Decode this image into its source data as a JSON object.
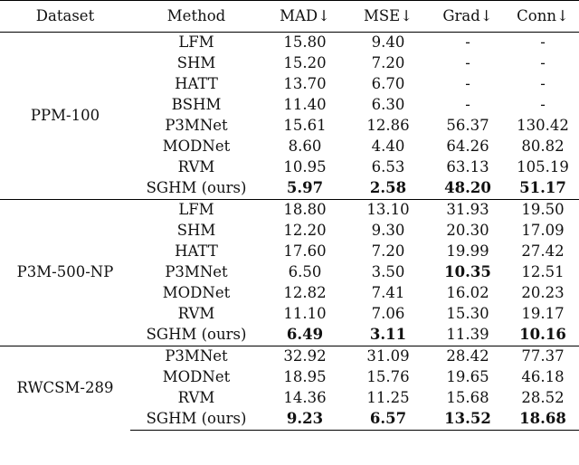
{
  "headers": [
    "Dataset",
    "Method",
    "MAD↓",
    "MSE↓",
    "Grad↓",
    "Conn↓"
  ],
  "groups": [
    {
      "dataset": "PPM-100",
      "rows": [
        {
          "method": "LFM",
          "mad": "15.80",
          "mse": "9.40",
          "grad": "-",
          "conn": "-",
          "bold": []
        },
        {
          "method": "SHM",
          "mad": "15.20",
          "mse": "7.20",
          "grad": "-",
          "conn": "-",
          "bold": []
        },
        {
          "method": "HATT",
          "mad": "13.70",
          "mse": "6.70",
          "grad": "-",
          "conn": "-",
          "bold": []
        },
        {
          "method": "BSHM",
          "mad": "11.40",
          "mse": "6.30",
          "grad": "-",
          "conn": "-",
          "bold": []
        },
        {
          "method": "P3MNet",
          "mad": "15.61",
          "mse": "12.86",
          "grad": "56.37",
          "conn": "130.42",
          "bold": []
        },
        {
          "method": "MODNet",
          "mad": "8.60",
          "mse": "4.40",
          "grad": "64.26",
          "conn": "80.82",
          "bold": []
        },
        {
          "method": "RVM",
          "mad": "10.95",
          "mse": "6.53",
          "grad": "63.13",
          "conn": "105.19",
          "bold": []
        },
        {
          "method": "SGHM (ours)",
          "mad": "5.97",
          "mse": "2.58",
          "grad": "48.20",
          "conn": "51.17",
          "bold": [
            "mad",
            "mse",
            "grad",
            "conn"
          ]
        }
      ]
    },
    {
      "dataset": "P3M-500-NP",
      "rows": [
        {
          "method": "LFM",
          "mad": "18.80",
          "mse": "13.10",
          "grad": "31.93",
          "conn": "19.50",
          "bold": []
        },
        {
          "method": "SHM",
          "mad": "12.20",
          "mse": "9.30",
          "grad": "20.30",
          "conn": "17.09",
          "bold": []
        },
        {
          "method": "HATT",
          "mad": "17.60",
          "mse": "7.20",
          "grad": "19.99",
          "conn": "27.42",
          "bold": []
        },
        {
          "method": "P3MNet",
          "mad": "6.50",
          "mse": "3.50",
          "grad": "10.35",
          "conn": "12.51",
          "bold": [
            "grad"
          ]
        },
        {
          "method": "MODNet",
          "mad": "12.82",
          "mse": "7.41",
          "grad": "16.02",
          "conn": "20.23",
          "bold": []
        },
        {
          "method": "RVM",
          "mad": "11.10",
          "mse": "7.06",
          "grad": "15.30",
          "conn": "19.17",
          "bold": []
        },
        {
          "method": "SGHM (ours)",
          "mad": "6.49",
          "mse": "3.11",
          "grad": "11.39",
          "conn": "10.16",
          "bold": [
            "mad",
            "mse",
            "conn"
          ]
        }
      ]
    },
    {
      "dataset": "RWCSM-289",
      "rows": [
        {
          "method": "P3MNet",
          "mad": "32.92",
          "mse": "31.09",
          "grad": "28.42",
          "conn": "77.37",
          "bold": []
        },
        {
          "method": "MODNet",
          "mad": "18.95",
          "mse": "15.76",
          "grad": "19.65",
          "conn": "46.18",
          "bold": []
        },
        {
          "method": "RVM",
          "mad": "14.36",
          "mse": "11.25",
          "grad": "15.68",
          "conn": "28.52",
          "bold": []
        },
        {
          "method": "SGHM (ours)",
          "mad": "9.23",
          "mse": "6.57",
          "grad": "13.52",
          "conn": "18.68",
          "bold": [
            "mad",
            "mse",
            "grad",
            "conn"
          ]
        }
      ]
    }
  ]
}
